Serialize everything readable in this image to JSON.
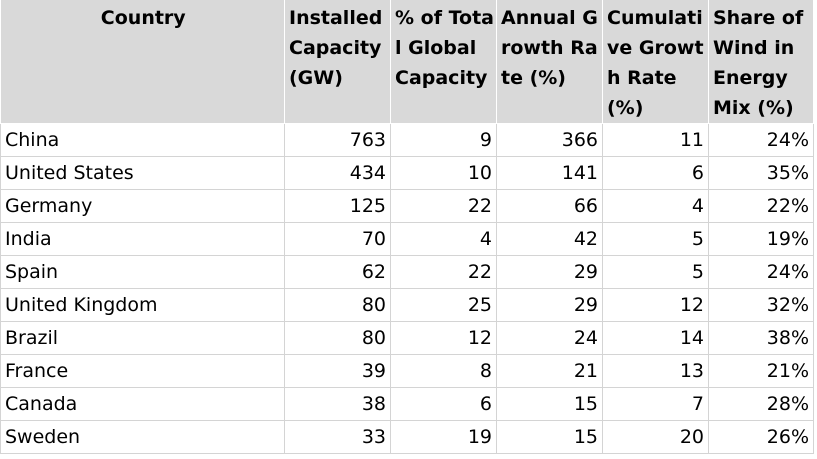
{
  "chart_data": {
    "type": "table",
    "columns": [
      "Country",
      "Installed Capacity (GW)",
      "% of Total Global Capacity",
      "Annual Growth Rate (%)",
      "Cumulative Growth Rate (%)",
      "Share of Wind in Energy Mix (%)"
    ],
    "header_display": [
      "Country",
      "Installed Capacity (GW)",
      "% of Total Global Capacity",
      "Annual Growth Rate (%)",
      "Cumulati ve Growth Rate (%)",
      "Share of Wind in Energy Mix (%)"
    ],
    "rows": [
      [
        "China",
        "763",
        "9",
        "366",
        "11",
        "24%"
      ],
      [
        "United States",
        "434",
        "10",
        "141",
        "6",
        "35%"
      ],
      [
        "Germany",
        "125",
        "22",
        "66",
        "4",
        "22%"
      ],
      [
        "India",
        "70",
        "4",
        "42",
        "5",
        "19%"
      ],
      [
        "Spain",
        "62",
        "22",
        "29",
        "5",
        "24%"
      ],
      [
        "United Kingdom",
        "80",
        "25",
        "29",
        "12",
        "32%"
      ],
      [
        "Brazil",
        "80",
        "12",
        "24",
        "14",
        "38%"
      ],
      [
        "France",
        "39",
        "8",
        "21",
        "13",
        "21%"
      ],
      [
        "Canada",
        "38",
        "6",
        "15",
        "7",
        "28%"
      ],
      [
        "Sweden",
        "33",
        "19",
        "15",
        "20",
        "26%"
      ]
    ]
  },
  "colors": {
    "header_background": "#d9d9d9",
    "gridline": "#d4d4d4",
    "text": "#000000"
  }
}
